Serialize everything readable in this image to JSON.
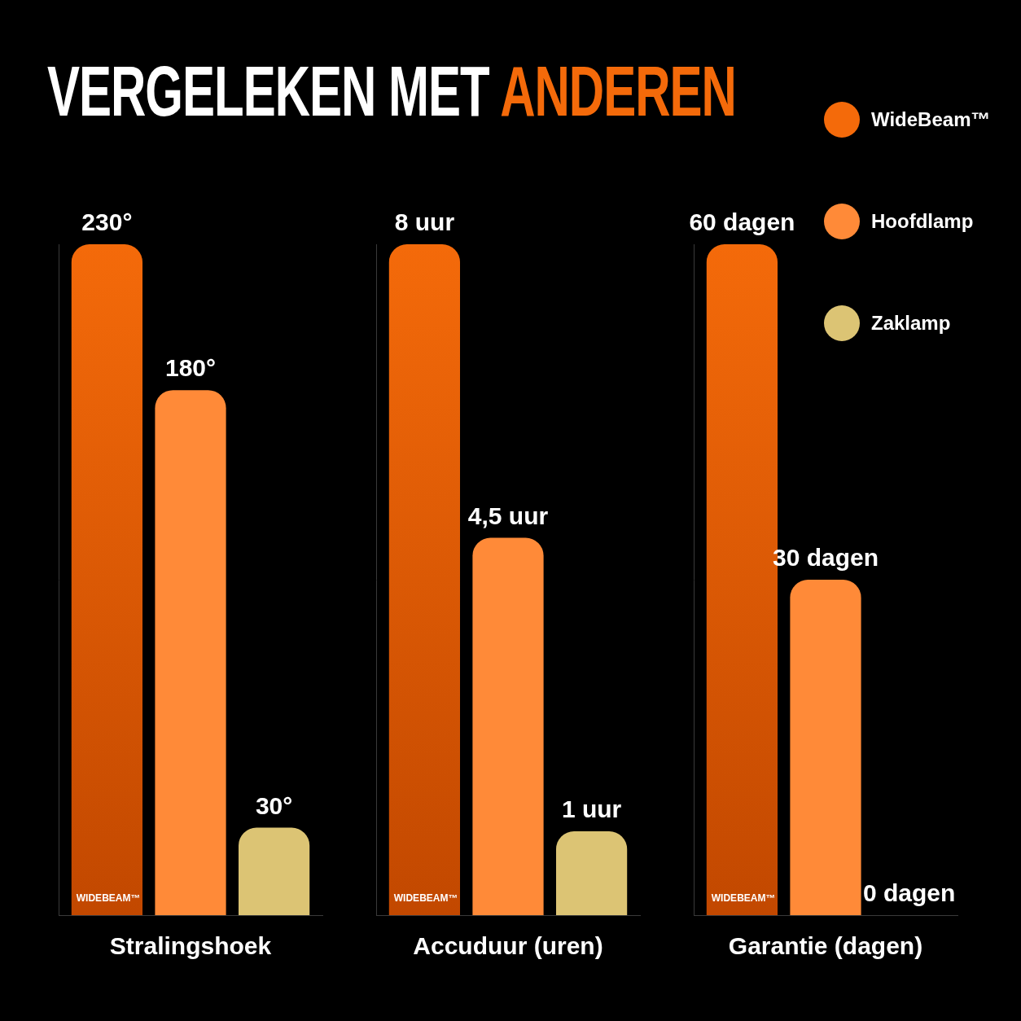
{
  "title": "VERGELEKEN MET ANDEREN",
  "chart_data": [
    {
      "type": "bar",
      "categories": [
        "Stralingshoek"
      ],
      "ylim": [
        0,
        230
      ],
      "grid": false,
      "tick_labels": "x",
      "data_labels": true,
      "annotation": "WIDEBEAM™",
      "series": [
        {
          "name": "WideBeam™",
          "color": "#f46a0a",
          "values": [
            230
          ],
          "value_labels": [
            "230°"
          ]
        },
        {
          "name": "Hoofdlamp",
          "color": "#ff8a38",
          "values": [
            180
          ],
          "value_labels": [
            "180°"
          ]
        },
        {
          "name": "Zaklamp",
          "color": "#dcc474",
          "values": [
            30
          ],
          "value_labels": [
            "30°"
          ]
        }
      ]
    },
    {
      "type": "bar",
      "categories": [
        "Accuduur (uren)"
      ],
      "ylim": [
        0,
        8
      ],
      "grid": false,
      "tick_labels": "x",
      "data_labels": true,
      "annotation": "WIDEBEAM™",
      "series": [
        {
          "name": "WideBeam™",
          "color": "#f46a0a",
          "values": [
            8
          ],
          "value_labels": [
            "8 uur"
          ]
        },
        {
          "name": "Hoofdlamp",
          "color": "#ff8a38",
          "values": [
            4.5
          ],
          "value_labels": [
            "4,5 uur"
          ]
        },
        {
          "name": "Zaklamp",
          "color": "#dcc474",
          "values": [
            1
          ],
          "value_labels": [
            "1 uur"
          ]
        }
      ]
    },
    {
      "type": "bar",
      "categories": [
        "Garantie (dagen)"
      ],
      "ylim": [
        0,
        60
      ],
      "grid": false,
      "tick_labels": "x",
      "data_labels": true,
      "annotation": "WIDEBEAM™",
      "legend": "top-right",
      "series": [
        {
          "name": "WideBeam™",
          "color": "#f46a0a",
          "values": [
            60
          ],
          "value_labels": [
            "60 dagen"
          ]
        },
        {
          "name": "Hoofdlamp",
          "color": "#ff8a38",
          "values": [
            30
          ],
          "value_labels": [
            "30 dagen"
          ]
        },
        {
          "name": "Zaklamp",
          "color": "#dcc474",
          "values": [
            0
          ],
          "value_labels": [
            "0 dagen"
          ]
        }
      ]
    }
  ]
}
